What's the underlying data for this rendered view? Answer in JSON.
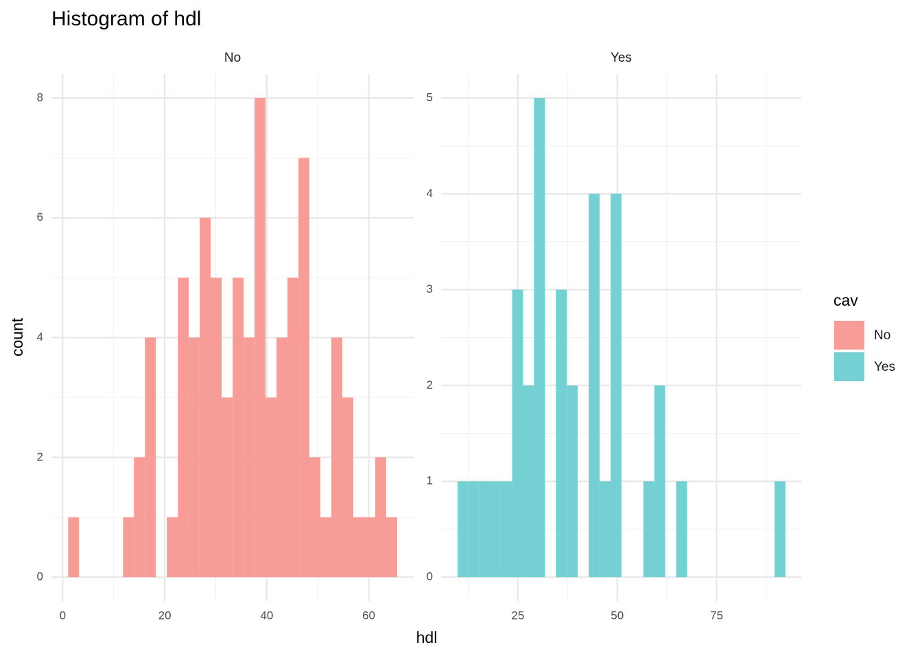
{
  "figure": {
    "title": "Histogram of hdl",
    "x_label": "hdl",
    "y_label": "count",
    "legend_title": "cav"
  },
  "chart_data": [
    {
      "type": "histogram",
      "title": "No",
      "color": "#f79c97",
      "bins": [
        1.07,
        3.22,
        5.37,
        7.52,
        9.67,
        11.82,
        13.97,
        16.12,
        18.27,
        20.42,
        22.57,
        24.72,
        26.87,
        29.02,
        31.17,
        33.32,
        35.47,
        37.62,
        39.77,
        41.92,
        44.07,
        46.22,
        48.37,
        50.52,
        52.67,
        54.82,
        56.97,
        59.12,
        61.27,
        63.42,
        65.57
      ],
      "values": [
        1,
        0,
        0,
        0,
        0,
        1,
        2,
        4,
        0,
        1,
        5,
        4,
        6,
        5,
        3,
        5,
        4,
        8,
        3,
        4,
        5,
        7,
        2,
        1,
        4,
        3,
        1,
        1,
        2,
        1
      ],
      "xlim": [
        -2.2,
        68.8
      ],
      "xticks": [
        0,
        20,
        40,
        60
      ],
      "ylim": [
        -0.4,
        8.4
      ],
      "yticks": [
        0,
        2,
        4,
        6,
        8
      ],
      "grid": true
    },
    {
      "type": "histogram",
      "title": "Yes",
      "color": "#74d0d3",
      "bins": [
        9.83,
        12.58,
        15.33,
        18.08,
        20.83,
        23.58,
        26.33,
        29.08,
        31.83,
        34.58,
        37.33,
        40.08,
        42.83,
        45.58,
        48.33,
        51.08,
        53.83,
        56.58,
        59.33,
        62.08,
        64.83,
        67.58,
        70.33,
        73.08,
        75.83,
        78.58,
        81.33,
        84.08,
        86.83,
        89.58,
        92.33
      ],
      "values": [
        1,
        1,
        1,
        1,
        1,
        3,
        2,
        5,
        0,
        3,
        2,
        0,
        4,
        1,
        4,
        0,
        0,
        1,
        2,
        0,
        1,
        0,
        0,
        0,
        0,
        0,
        0,
        0,
        0,
        1
      ],
      "xlim": [
        5.7,
        96.3
      ],
      "xticks": [
        25,
        50,
        75
      ],
      "ylim": [
        -0.25,
        5.25
      ],
      "yticks": [
        0,
        1,
        2,
        3,
        4,
        5
      ],
      "grid": true
    }
  ]
}
